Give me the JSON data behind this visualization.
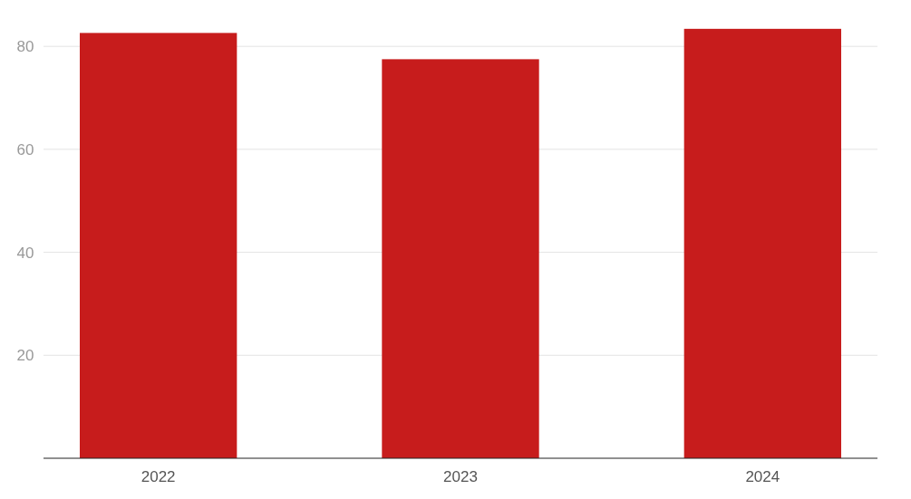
{
  "chart_data": {
    "type": "bar",
    "categories": [
      "2022",
      "2023",
      "2024"
    ],
    "values": [
      82.6,
      77.5,
      83.4
    ],
    "color": "#c71c1c",
    "ylim": [
      0,
      89
    ],
    "yticks": [
      20,
      40,
      60,
      80
    ],
    "grid": "y"
  }
}
